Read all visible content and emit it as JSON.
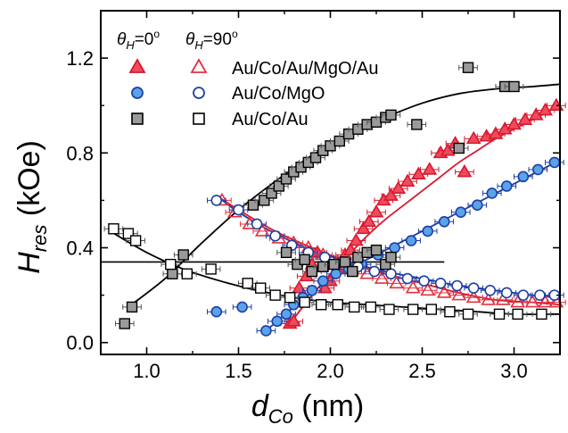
{
  "chart_data": {
    "type": "scatter",
    "title": "",
    "xlabel": {
      "main": "d",
      "sub": "Co",
      "unit": " (nm)"
    },
    "ylabel": {
      "main": "H",
      "sub": "res",
      "unit": " (kOe)"
    },
    "xlim": [
      0.75,
      3.25
    ],
    "ylim": [
      -0.05,
      1.4
    ],
    "xticks": [
      1.0,
      1.5,
      2.0,
      2.5,
      3.0
    ],
    "xtick_labels": [
      "1.0",
      "1.5",
      "2.0",
      "2.5",
      "3.0"
    ],
    "yticks": [
      0.0,
      0.4,
      0.8,
      1.2
    ],
    "ytick_labels": [
      "0.0",
      "0.4",
      "0.8",
      "1.2"
    ],
    "legend": {
      "placement": "top-left",
      "header_0": {
        "theta": "θ",
        "sub": "H",
        "val": "=0",
        "deg": "o"
      },
      "header_90": {
        "theta": "θ",
        "sub": "H",
        "val": "=90",
        "deg": "o"
      },
      "entries": [
        {
          "label": "Au/Co/Au/MgO/Au"
        },
        {
          "label": "Au/Co/MgO"
        },
        {
          "label": "Au/Co/Au"
        }
      ]
    },
    "reference_line": {
      "y": 0.34,
      "x_from": 0.75,
      "x_to": 2.62
    },
    "series": [
      {
        "marker": "triangle",
        "filled": true,
        "fill": "#f04a5e",
        "stroke": "#d61a2e",
        "x": [
          1.78,
          1.8,
          1.83,
          1.87,
          1.9,
          1.93,
          1.97,
          2.0,
          2.04,
          2.08,
          2.11,
          2.14,
          2.18,
          2.21,
          2.25,
          2.29,
          2.33,
          2.37,
          2.42,
          2.48,
          2.54,
          2.6,
          2.64,
          2.68,
          2.73,
          2.78,
          2.85,
          2.9,
          2.95,
          3.0,
          3.06,
          3.12,
          3.17,
          3.23
        ],
        "y": [
          0.08,
          0.09,
          0.23,
          0.28,
          0.33,
          0.38,
          0.23,
          0.26,
          0.31,
          0.37,
          0.39,
          0.43,
          0.48,
          0.51,
          0.55,
          0.6,
          0.62,
          0.65,
          0.68,
          0.71,
          0.73,
          0.8,
          0.81,
          0.84,
          0.72,
          0.86,
          0.87,
          0.88,
          0.9,
          0.92,
          0.94,
          0.96,
          0.98,
          1.0
        ]
      },
      {
        "marker": "triangle",
        "filled": false,
        "fill": "none",
        "stroke": "#e2303e",
        "x": [
          1.41,
          1.48,
          1.56,
          1.63,
          1.72,
          1.8,
          1.88,
          1.96,
          2.04,
          2.12,
          2.2,
          2.28,
          2.36,
          2.45,
          2.53,
          2.62,
          2.7,
          2.78,
          2.86,
          2.94,
          3.02,
          3.1,
          3.17,
          3.23
        ],
        "y": [
          0.6,
          0.55,
          0.5,
          0.47,
          0.44,
          0.42,
          0.4,
          0.37,
          0.34,
          0.31,
          0.29,
          0.27,
          0.25,
          0.23,
          0.22,
          0.21,
          0.2,
          0.19,
          0.18,
          0.18,
          0.17,
          0.17,
          0.17,
          0.17
        ]
      },
      {
        "marker": "circle",
        "filled": true,
        "fill": "#5aa3ea",
        "stroke": "#1d3fa6",
        "x": [
          1.38,
          1.52,
          1.65,
          1.71,
          1.76,
          1.8,
          1.85,
          1.9,
          1.96,
          2.03,
          2.1,
          2.17,
          2.26,
          2.35,
          2.44,
          2.53,
          2.62,
          2.71,
          2.8,
          2.88,
          2.96,
          3.05,
          3.13,
          3.22
        ],
        "y": [
          0.13,
          0.15,
          0.05,
          0.09,
          0.12,
          0.16,
          0.19,
          0.22,
          0.26,
          0.29,
          0.31,
          0.33,
          0.37,
          0.4,
          0.43,
          0.47,
          0.51,
          0.55,
          0.58,
          0.63,
          0.66,
          0.7,
          0.73,
          0.76
        ]
      },
      {
        "marker": "circle",
        "filled": false,
        "fill": "#ffffff",
        "stroke": "#1d3fa6",
        "x": [
          1.38,
          1.5,
          1.6,
          1.7,
          1.79,
          1.88,
          1.97,
          2.06,
          2.15,
          2.24,
          2.33,
          2.42,
          2.51,
          2.6,
          2.69,
          2.78,
          2.87,
          2.96,
          3.05,
          3.14,
          3.22
        ],
        "y": [
          0.6,
          0.56,
          0.5,
          0.45,
          0.41,
          0.38,
          0.36,
          0.34,
          0.32,
          0.3,
          0.29,
          0.27,
          0.26,
          0.25,
          0.24,
          0.23,
          0.22,
          0.21,
          0.2,
          0.2,
          0.2
        ]
      },
      {
        "marker": "square",
        "filled": true,
        "fill": "#9a9a9a",
        "stroke": "#000000",
        "x": [
          0.88,
          0.92,
          1.14,
          1.2,
          1.76,
          1.82,
          1.86,
          1.9,
          1.96,
          2.02,
          2.08,
          2.12,
          2.15,
          2.2,
          2.25,
          2.3,
          2.33,
          2.47,
          2.7,
          2.75,
          2.95,
          3.0
        ],
        "y": [
          0.08,
          0.15,
          0.29,
          0.37,
          0.38,
          0.33,
          0.35,
          0.3,
          0.32,
          0.33,
          0.34,
          0.3,
          0.36,
          0.38,
          0.39,
          0.33,
          0.36,
          0.92,
          0.82,
          1.16,
          1.08,
          1.08
        ]
      },
      {
        "marker": "square",
        "filled": true,
        "fill": "#9a9a9a",
        "stroke": "#000000",
        "x": [
          1.58,
          1.64,
          1.68,
          1.72,
          1.76,
          1.8,
          1.84,
          1.88,
          1.92,
          1.96,
          2.0,
          2.05,
          2.1,
          2.15,
          2.2,
          2.25,
          2.3,
          2.33
        ],
        "y": [
          0.58,
          0.6,
          0.63,
          0.66,
          0.69,
          0.72,
          0.74,
          0.76,
          0.78,
          0.81,
          0.83,
          0.85,
          0.88,
          0.9,
          0.92,
          0.93,
          0.95,
          0.96
        ]
      },
      {
        "marker": "square",
        "filled": false,
        "fill": "#ffffff",
        "stroke": "#000000",
        "x": [
          0.82,
          0.9,
          0.94,
          1.13,
          1.22,
          1.35,
          1.55,
          1.62,
          1.7,
          1.78,
          1.86,
          1.95,
          2.04,
          2.13,
          2.22,
          2.32,
          2.45,
          2.55,
          2.65,
          2.75,
          2.92,
          3.02,
          3.15
        ],
        "y": [
          0.48,
          0.46,
          0.43,
          0.33,
          0.29,
          0.31,
          0.25,
          0.23,
          0.2,
          0.19,
          0.17,
          0.16,
          0.16,
          0.15,
          0.15,
          0.14,
          0.14,
          0.14,
          0.13,
          0.12,
          0.12,
          0.12,
          0.12
        ]
      }
    ],
    "fits": [
      {
        "color": "#000000",
        "x": [
          0.9,
          1.1,
          1.3,
          1.5,
          1.7,
          1.9,
          2.1,
          2.3,
          2.5,
          2.7,
          2.9,
          3.1,
          3.25
        ],
        "y": [
          0.15,
          0.27,
          0.42,
          0.56,
          0.68,
          0.79,
          0.88,
          0.95,
          1.01,
          1.05,
          1.07,
          1.08,
          1.09
        ]
      },
      {
        "color": "#000000",
        "x": [
          0.8,
          1.0,
          1.2,
          1.4,
          1.6,
          1.8,
          2.0,
          2.2,
          2.4,
          2.6,
          2.8,
          3.0,
          3.25
        ],
        "y": [
          0.47,
          0.38,
          0.31,
          0.26,
          0.22,
          0.19,
          0.17,
          0.16,
          0.15,
          0.14,
          0.13,
          0.12,
          0.12
        ]
      },
      {
        "color": "#d61a2e",
        "x": [
          1.78,
          1.9,
          2.0,
          2.1,
          2.2,
          2.3,
          2.4,
          2.5,
          2.6,
          2.7,
          2.8,
          2.9,
          3.0,
          3.1,
          3.25
        ],
        "y": [
          0.08,
          0.2,
          0.29,
          0.37,
          0.45,
          0.52,
          0.58,
          0.64,
          0.7,
          0.76,
          0.81,
          0.86,
          0.9,
          0.94,
          1.0
        ]
      },
      {
        "color": "#d61a2e",
        "x": [
          1.38,
          1.5,
          1.7,
          1.9,
          2.1,
          2.3,
          2.5,
          2.7,
          2.9,
          3.1,
          3.25
        ],
        "y": [
          0.62,
          0.56,
          0.47,
          0.4,
          0.34,
          0.29,
          0.25,
          0.21,
          0.18,
          0.17,
          0.16
        ]
      },
      {
        "color": "#1d3fa6",
        "x": [
          1.65,
          1.8,
          1.95,
          2.1,
          2.3,
          2.5,
          2.7,
          2.9,
          3.1,
          3.25
        ],
        "y": [
          0.05,
          0.15,
          0.24,
          0.31,
          0.39,
          0.47,
          0.55,
          0.63,
          0.71,
          0.77
        ]
      },
      {
        "color": "#1d3fa6",
        "x": [
          1.38,
          1.5,
          1.7,
          1.9,
          2.1,
          2.3,
          2.5,
          2.7,
          2.9,
          3.1,
          3.25
        ],
        "y": [
          0.62,
          0.55,
          0.46,
          0.39,
          0.34,
          0.3,
          0.27,
          0.24,
          0.22,
          0.2,
          0.19
        ]
      }
    ],
    "grid": false
  }
}
